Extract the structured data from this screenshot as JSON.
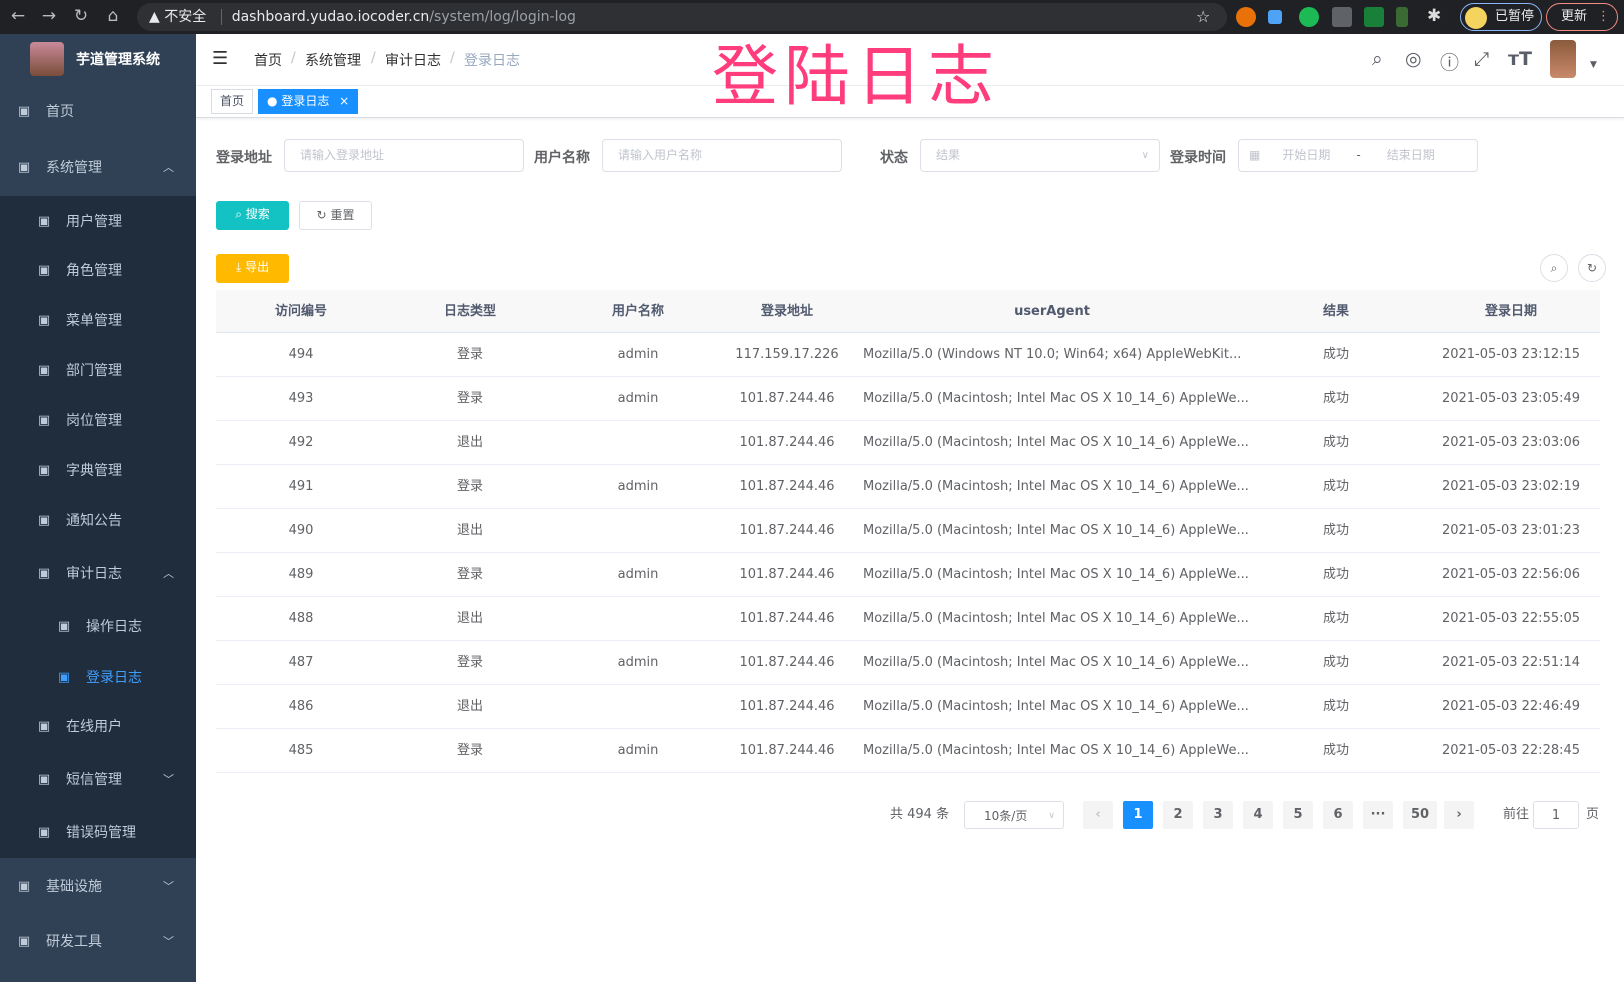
{
  "browser": {
    "security": "不安全",
    "url_host": "dashboard.yudao.iocoder.cn",
    "url_path": "/system/log/login-log",
    "profile": "已暂停",
    "update": "更新"
  },
  "overlay_title": "登陆日志",
  "sidebar": {
    "title": "芋道管理系统",
    "items": [
      {
        "label": "首页",
        "icon": "dashboard-icon",
        "level": 0
      },
      {
        "label": "系统管理",
        "icon": "gear-icon",
        "level": 0,
        "arrow": "up"
      },
      {
        "label": "用户管理",
        "icon": "user-icon",
        "level": 1
      },
      {
        "label": "角色管理",
        "icon": "peoples-icon",
        "level": 1
      },
      {
        "label": "菜单管理",
        "icon": "tree-table-icon",
        "level": 1
      },
      {
        "label": "部门管理",
        "icon": "tree-icon",
        "level": 1
      },
      {
        "label": "岗位管理",
        "icon": "post-icon",
        "level": 1
      },
      {
        "label": "字典管理",
        "icon": "dict-icon",
        "level": 1
      },
      {
        "label": "通知公告",
        "icon": "message-icon",
        "level": 1
      },
      {
        "label": "审计日志",
        "icon": "log-icon",
        "level": 1,
        "arrow": "up"
      },
      {
        "label": "操作日志",
        "icon": "form-icon",
        "level": 2
      },
      {
        "label": "登录日志",
        "icon": "logininfor-icon",
        "level": 2,
        "active": true
      },
      {
        "label": "在线用户",
        "icon": "online-icon",
        "level": 1
      },
      {
        "label": "短信管理",
        "icon": "validCode-icon",
        "level": 1,
        "arrow": "down"
      },
      {
        "label": "错误码管理",
        "icon": "code-icon",
        "level": 1
      },
      {
        "label": "基础设施",
        "icon": "monitor-icon",
        "level": 0,
        "arrow": "down"
      },
      {
        "label": "研发工具",
        "icon": "tool-icon",
        "level": 0,
        "arrow": "down"
      }
    ]
  },
  "breadcrumb": [
    "首页",
    "系统管理",
    "审计日志",
    "登录日志"
  ],
  "tags": [
    {
      "label": "首页"
    },
    {
      "label": "登录日志",
      "active": true,
      "close": "×"
    }
  ],
  "filters": {
    "ipaddr": {
      "label": "登录地址",
      "placeholder": "请输入登录地址"
    },
    "username": {
      "label": "用户名称",
      "placeholder": "请输入用户名称"
    },
    "status": {
      "label": "状态",
      "placeholder": "结果"
    },
    "time": {
      "label": "登录时间",
      "start": "开始日期",
      "sep": "-",
      "end": "结束日期"
    }
  },
  "buttons": {
    "search": "搜索",
    "reset": "重置",
    "export": "导出"
  },
  "colors": {
    "sidebar": "#304156",
    "submenu": "#1f2d3d",
    "primary": "#1890ff",
    "search": "#13c2c2",
    "export": "#ffba00",
    "overlay": "#ff3c7c"
  },
  "table": {
    "columns": [
      "访问编号",
      "日志类型",
      "用户名称",
      "登录地址",
      "userAgent",
      "结果",
      "登录日期"
    ],
    "rows": [
      [
        "494",
        "登录",
        "admin",
        "117.159.17.226",
        "Mozilla/5.0 (Windows NT 10.0; Win64; x64) AppleWebKit...",
        "成功",
        "2021-05-03 23:12:15"
      ],
      [
        "493",
        "登录",
        "admin",
        "101.87.244.46",
        "Mozilla/5.0 (Macintosh; Intel Mac OS X 10_14_6) AppleWe...",
        "成功",
        "2021-05-03 23:05:49"
      ],
      [
        "492",
        "退出",
        "",
        "101.87.244.46",
        "Mozilla/5.0 (Macintosh; Intel Mac OS X 10_14_6) AppleWe...",
        "成功",
        "2021-05-03 23:03:06"
      ],
      [
        "491",
        "登录",
        "admin",
        "101.87.244.46",
        "Mozilla/5.0 (Macintosh; Intel Mac OS X 10_14_6) AppleWe...",
        "成功",
        "2021-05-03 23:02:19"
      ],
      [
        "490",
        "退出",
        "",
        "101.87.244.46",
        "Mozilla/5.0 (Macintosh; Intel Mac OS X 10_14_6) AppleWe...",
        "成功",
        "2021-05-03 23:01:23"
      ],
      [
        "489",
        "登录",
        "admin",
        "101.87.244.46",
        "Mozilla/5.0 (Macintosh; Intel Mac OS X 10_14_6) AppleWe...",
        "成功",
        "2021-05-03 22:56:06"
      ],
      [
        "488",
        "退出",
        "",
        "101.87.244.46",
        "Mozilla/5.0 (Macintosh; Intel Mac OS X 10_14_6) AppleWe...",
        "成功",
        "2021-05-03 22:55:05"
      ],
      [
        "487",
        "登录",
        "admin",
        "101.87.244.46",
        "Mozilla/5.0 (Macintosh; Intel Mac OS X 10_14_6) AppleWe...",
        "成功",
        "2021-05-03 22:51:14"
      ],
      [
        "486",
        "退出",
        "",
        "101.87.244.46",
        "Mozilla/5.0 (Macintosh; Intel Mac OS X 10_14_6) AppleWe...",
        "成功",
        "2021-05-03 22:46:49"
      ],
      [
        "485",
        "登录",
        "admin",
        "101.87.244.46",
        "Mozilla/5.0 (Macintosh; Intel Mac OS X 10_14_6) AppleWe...",
        "成功",
        "2021-05-03 22:28:45"
      ]
    ]
  },
  "pagination": {
    "total": "共 494 条",
    "page_size": "10条/页",
    "pages": [
      "1",
      "2",
      "3",
      "4",
      "5",
      "6",
      "···",
      "50"
    ],
    "current": "1",
    "goto_label": "前往",
    "goto_value": "1",
    "page_unit": "页"
  }
}
